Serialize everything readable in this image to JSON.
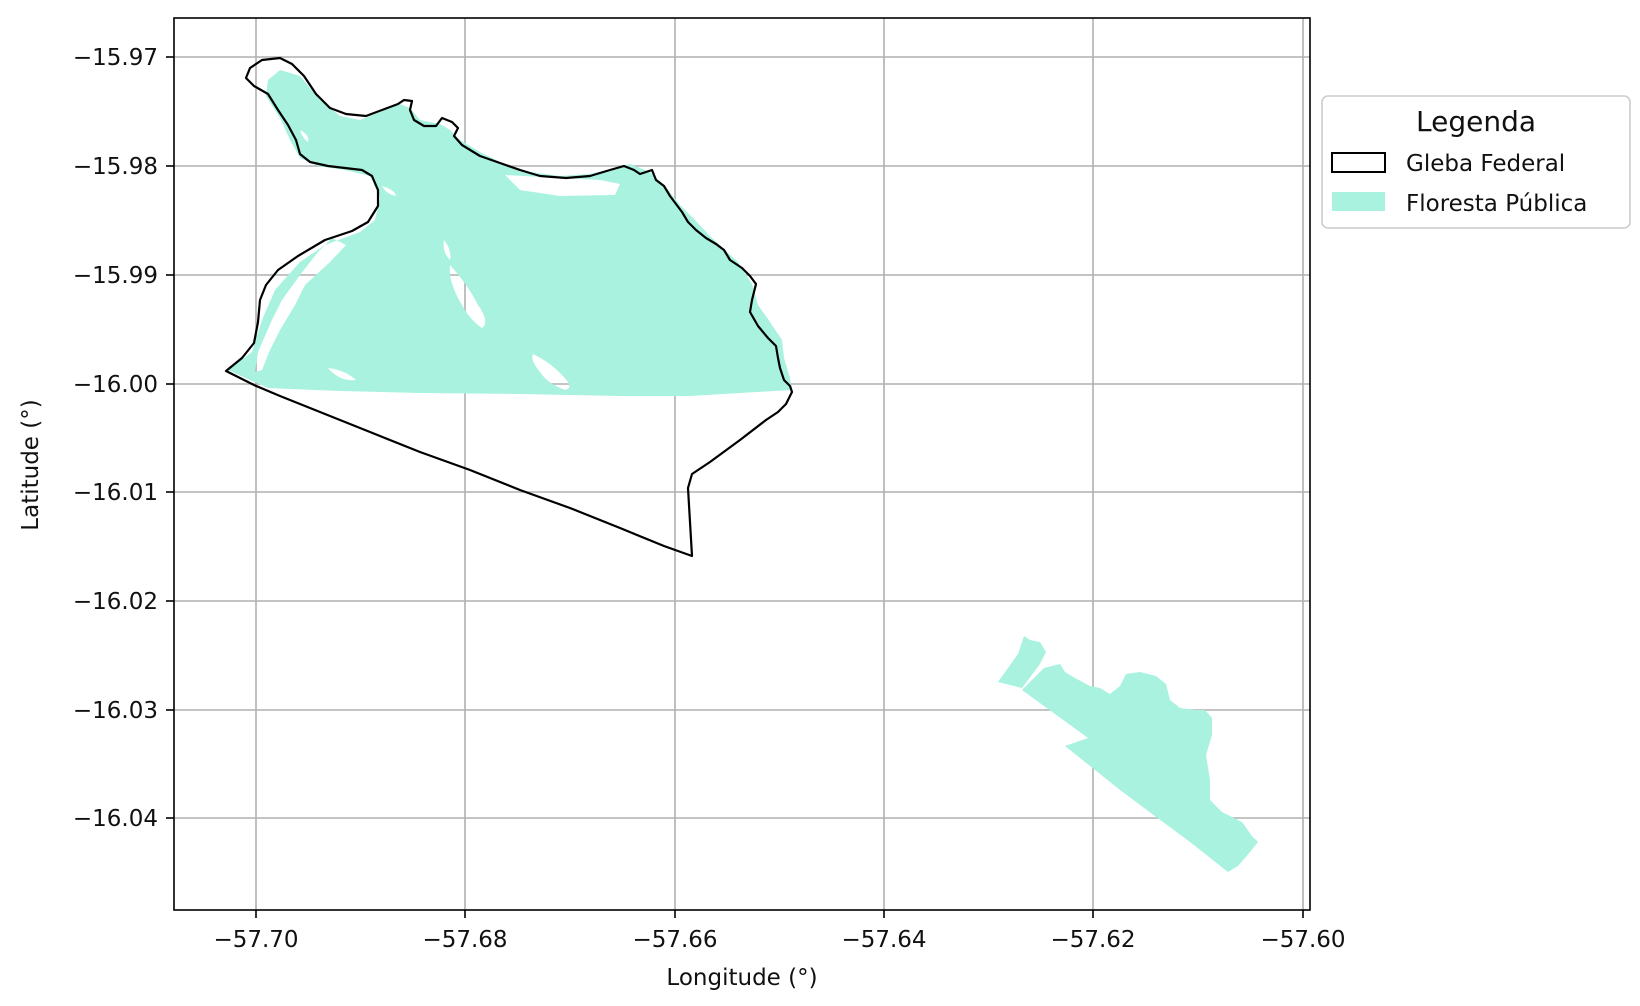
{
  "map": {
    "xlabel": "Longitude (°)",
    "ylabel": "Latitude (°)",
    "x_ticks": [
      "−57.70",
      "−57.68",
      "−57.66",
      "−57.64",
      "−57.62",
      "−57.60"
    ],
    "y_ticks": [
      "−15.97",
      "−15.98",
      "−15.99",
      "−16.00",
      "−16.01",
      "−16.02",
      "−16.03",
      "−16.04"
    ],
    "grid": true,
    "legend": {
      "title": "Legenda",
      "placement": "outside right, top",
      "items": [
        {
          "label": "Gleba Federal",
          "style": "outline",
          "color": "#000000"
        },
        {
          "label": "Floresta Pública",
          "style": "fill",
          "color": "#a8f2df"
        }
      ]
    },
    "colors": {
      "forest_fill": "#a8f2df",
      "boundary_line": "#000000",
      "grid": "#b0b0b0"
    }
  }
}
